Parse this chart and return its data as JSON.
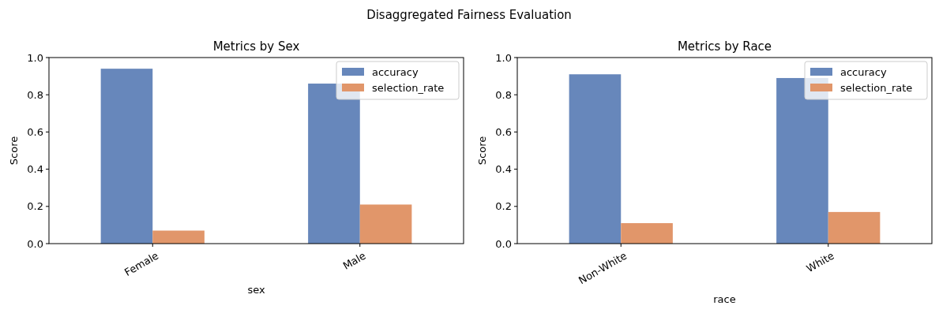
{
  "chart_data": [
    {
      "type": "bar",
      "title": "Metrics by Sex",
      "annotations": [
        "Disaggregated Fairness Evaluation"
      ],
      "xlabel": "sex",
      "ylabel": "Score",
      "categories": [
        "Female",
        "Male"
      ],
      "series": [
        {
          "name": "accuracy",
          "color": "#6787bb",
          "values": [
            0.94,
            0.86
          ]
        },
        {
          "name": "selection_rate",
          "color": "#e1966a",
          "values": [
            0.07,
            0.21
          ]
        }
      ],
      "ylim": [
        0,
        1
      ],
      "yticks": [
        {
          "value": 0,
          "label": "0.0"
        },
        {
          "value": 0.2,
          "label": "0.2"
        },
        {
          "value": 0.4,
          "label": "0.4"
        },
        {
          "value": 0.6,
          "label": "0.6"
        },
        {
          "value": 0.8,
          "label": "0.8"
        },
        {
          "value": 1,
          "label": "1.0"
        }
      ],
      "legend": "top right"
    },
    {
      "type": "bar",
      "title": "Metrics by Race",
      "xlabel": "race",
      "ylabel": "Score",
      "categories": [
        "Non-White",
        "White"
      ],
      "series": [
        {
          "name": "accuracy",
          "color": "#6787bb",
          "values": [
            0.91,
            0.89
          ]
        },
        {
          "name": "selection_rate",
          "color": "#e1966a",
          "values": [
            0.11,
            0.17
          ]
        }
      ],
      "ylim": [
        0,
        1
      ],
      "yticks": [
        {
          "value": 0,
          "label": "0.0"
        },
        {
          "value": 0.2,
          "label": "0.2"
        },
        {
          "value": 0.4,
          "label": "0.4"
        },
        {
          "value": 0.6,
          "label": "0.6"
        },
        {
          "value": 0.8,
          "label": "0.8"
        },
        {
          "value": 1,
          "label": "1.0"
        }
      ],
      "legend": "top right"
    }
  ]
}
